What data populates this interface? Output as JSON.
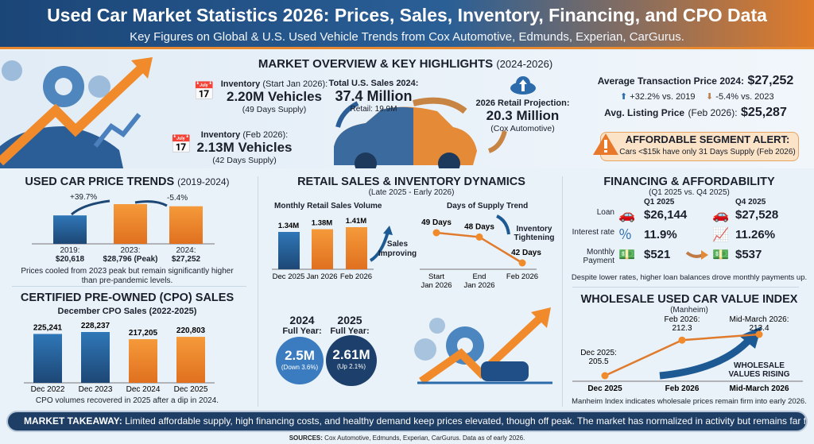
{
  "header": {
    "title": "Used Car Market Statistics 2026: Prices, Sales, Inventory, Financing, and CPO Data",
    "subtitle": "Key Figures on Global & U.S. Used Vehicle Trends from Cox Automotive, Edmunds, Experian, CarGurus."
  },
  "overview": {
    "title": "MARKET OVERVIEW & KEY HIGHLIGHTS",
    "title_range": "(2024-2026)",
    "inv_jan_label": "Inventory",
    "inv_jan_period": "(Start Jan 2026):",
    "inv_jan_value": "2.20M Vehicles",
    "inv_jan_supply": "(49 Days Supply)",
    "inv_feb_label": "Inventory",
    "inv_feb_period": "(Feb 2026):",
    "inv_feb_value": "2.13M Vehicles",
    "inv_feb_supply": "(42 Days Supply)",
    "sales_label": "Total U.S. Sales 2024:",
    "sales_value": "37.4 Million",
    "sales_retail": "Retail: 19.9M",
    "proj_label": "2026 Retail Projection:",
    "proj_value": "20.3 Million",
    "proj_source": "(Cox Automotive)",
    "atp_label": "Average Transaction Price 2024:",
    "atp_value": "$27,252",
    "atp_vs2019": "+32.2% vs. 2019",
    "atp_vs2023": "-5.4% vs. 2023",
    "alp_label": "Avg. Listing Price",
    "alp_period": "(Feb 2026):",
    "alp_value": "$25,287",
    "alert_title": "AFFORDABLE SEGMENT ALERT:",
    "alert_text": "Cars <$15k have only 31 Days Supply (Feb 2026)"
  },
  "price_trends": {
    "title": "USED CAR PRICE TRENDS",
    "range": "(2019-2024)",
    "change_1": "+39.7%",
    "change_2": "-5.4%",
    "labels": [
      [
        "2019:",
        "$20,618"
      ],
      [
        "2023:",
        "$28,796 (Peak)"
      ],
      [
        "2024:",
        "$27,252"
      ]
    ],
    "note": "Prices cooled from 2023 peak but remain significantly higher than pre-pandemic levels."
  },
  "cpo": {
    "title": "CERTIFIED PRE-OWNED (CPO) SALES",
    "subtitle": "December CPO Sales (2022-2025)",
    "note": "CPO volumes recovered in 2025 after a dip in 2024."
  },
  "retail": {
    "title": "RETAIL SALES & INVENTORY DYNAMICS",
    "range": "(Late 2025 - Early 2026)",
    "volume_title": "Monthly Retail Sales Volume",
    "sales_note": "Sales Improving",
    "supply_title": "Days of Supply Trend",
    "supply_note": "Inventory Tightening",
    "fy2024_year": "2024",
    "fy2024_label": "Full Year:",
    "fy2024_value": "2.5M",
    "fy2024_change": "(Down 3.6%)",
    "fy2025_year": "2025",
    "fy2025_label": "Full Year:",
    "fy2025_value": "2.61M",
    "fy2025_change": "(Up 2.1%)"
  },
  "financing": {
    "title": "FINANCING & AFFORDABILITY",
    "range": "(Q1 2025 vs. Q4 2025)",
    "col1": "Q1 2025",
    "col2": "Q4 2025",
    "rows": [
      {
        "label": "Loan",
        "q1": "$26,144",
        "q4": "$27,528"
      },
      {
        "label": "Interest rate",
        "q1": "11.9%",
        "q4": "11.26%"
      },
      {
        "label": "Monthly Payment",
        "q1": "$521",
        "q4": "$537"
      }
    ],
    "note": "Despite lower rates, higher loan balances drove monthly payments up."
  },
  "wholesale": {
    "title": "WHOLESALE USED CAR VALUE INDEX",
    "subtitle": "(Manheim)",
    "callout": "WHOLESALE VALUES RISING",
    "note": "Manheim Index indicates wholesale prices remain firm into early 2026."
  },
  "footer": {
    "takeaway_label": "MARKET TAKEAWAY:",
    "takeaway_text": "Limited affordable supply, high financing costs, and healthy demand keep prices elevated, though off peak. The market has normalized in activity but remains far from cheap.",
    "sources_label": "SOURCES:",
    "sources_text": "Cox Automotive, Edmunds, Experian, CarGurus. Data as of early 2026."
  },
  "colors": {
    "blue": "#2a6aa8",
    "navy": "#1d4775",
    "orange": "#f08a2a"
  },
  "chart_data": [
    {
      "type": "bar",
      "title": "USED CAR PRICE TRENDS (2019-2024)",
      "categories": [
        "2019",
        "2023",
        "2024"
      ],
      "values": [
        20618,
        28796,
        27252
      ]
    },
    {
      "type": "bar",
      "title": "December CPO Sales (2022-2025)",
      "categories": [
        "Dec 2022",
        "Dec 2023",
        "Dec 2024",
        "Dec 2025"
      ],
      "values": [
        225241,
        228237,
        217205,
        220803
      ],
      "labels": [
        "225,241",
        "228,237",
        "217,205",
        "220,803"
      ]
    },
    {
      "type": "bar",
      "title": "Monthly Retail Sales Volume",
      "categories": [
        "Dec 2025",
        "Jan 2026",
        "Feb 2026"
      ],
      "values": [
        1.34,
        1.38,
        1.41
      ],
      "labels": [
        "1.34M",
        "1.38M",
        "1.41M"
      ]
    },
    {
      "type": "line",
      "title": "Days of Supply Trend",
      "categories": [
        "Start Jan 2026",
        "End Jan 2026",
        "Feb 2026"
      ],
      "values": [
        49,
        48,
        42
      ],
      "labels": [
        "49 Days",
        "48 Days",
        "42 Days"
      ]
    },
    {
      "type": "line",
      "title": "WHOLESALE USED CAR VALUE INDEX",
      "categories": [
        "Dec 2025",
        "Feb 2026",
        "Mid-March 2026"
      ],
      "values": [
        205.5,
        212.3,
        213.4
      ],
      "labels": [
        "Dec 2025:\n205.5",
        "Feb 2026:\n212.3",
        "Mid-March 2026:\n213.4"
      ]
    }
  ]
}
